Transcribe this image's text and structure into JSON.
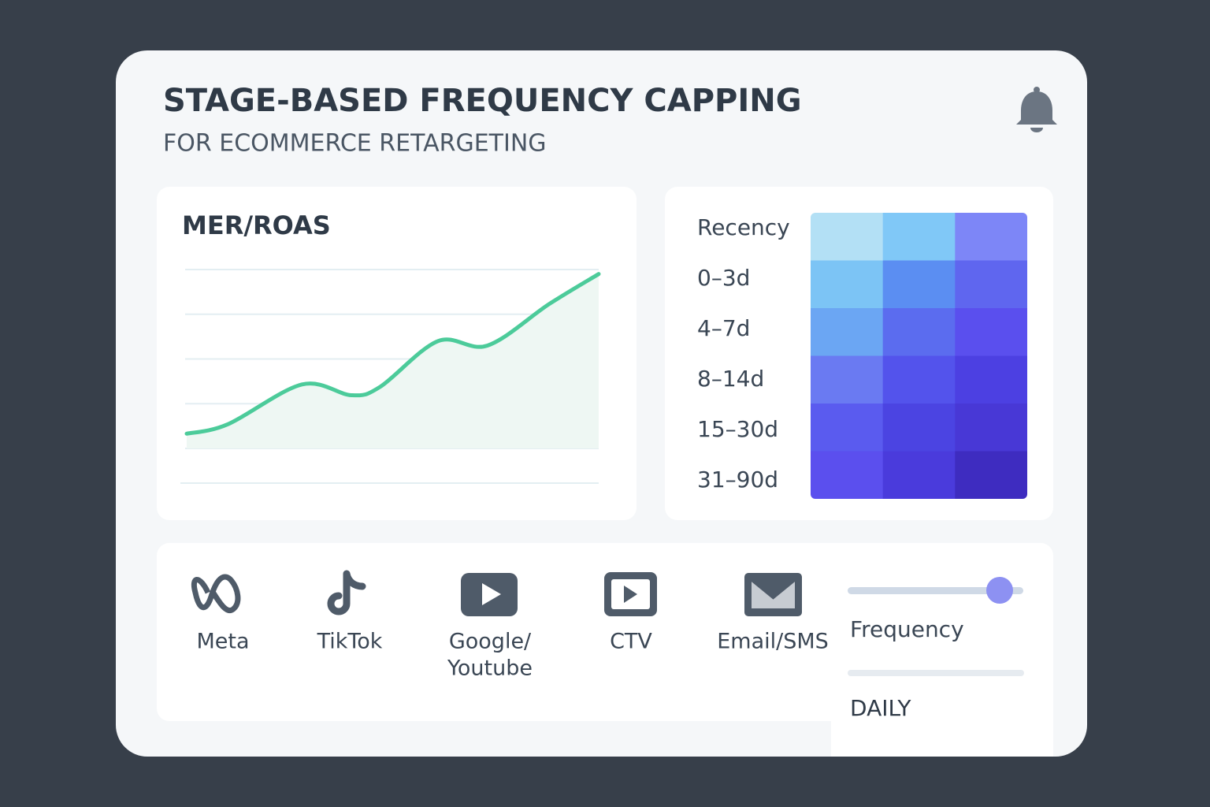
{
  "header": {
    "title": "STAGE-BASED FREQUENCY CAPPING",
    "subtitle": "FOR ECOMMERCE RETARGETING"
  },
  "chart_data": [
    {
      "type": "line",
      "title": "MER/ROAS",
      "color": "#4ccb9a",
      "fill": "#eef7f3",
      "x": [
        0,
        1,
        2.8,
        4,
        4.7,
        6.1,
        7.3,
        8.8,
        10
      ],
      "values": [
        1.33,
        1.54,
        2.43,
        2.19,
        2.38,
        3.4,
        3.3,
        4.23,
        4.9
      ],
      "xlim": [
        0,
        10
      ],
      "ylim": [
        1,
        5
      ],
      "gridlines": [
        1,
        2,
        3,
        4,
        5
      ],
      "grid": true
    },
    {
      "type": "heatmap",
      "row_labels": [
        "Recency",
        "0–3d",
        "4–7d",
        "8–14d",
        "15–30d",
        "31–90d"
      ],
      "colors": [
        [
          "#b3e0f5",
          "#80c8f7",
          "#7d86f7"
        ],
        [
          "#7cc4f5",
          "#5b8ef2",
          "#5f66ef"
        ],
        [
          "#6ba6f3",
          "#5b6cef",
          "#5a4fee"
        ],
        [
          "#6a7af2",
          "#5353ec",
          "#4c40e2"
        ],
        [
          "#5a5bef",
          "#4b44e2",
          "#4838d6"
        ],
        [
          "#5b4fee",
          "#4a3bdc",
          "#3e2cc0"
        ]
      ]
    }
  ],
  "channels": [
    {
      "label": "Meta"
    },
    {
      "label": "TikTok"
    },
    {
      "label": [
        "Google/",
        "Youtube"
      ]
    },
    {
      "label": "CTV"
    },
    {
      "label": "Email/SMS"
    }
  ],
  "frequency": {
    "label": "Frequency",
    "period": "DAILY"
  }
}
